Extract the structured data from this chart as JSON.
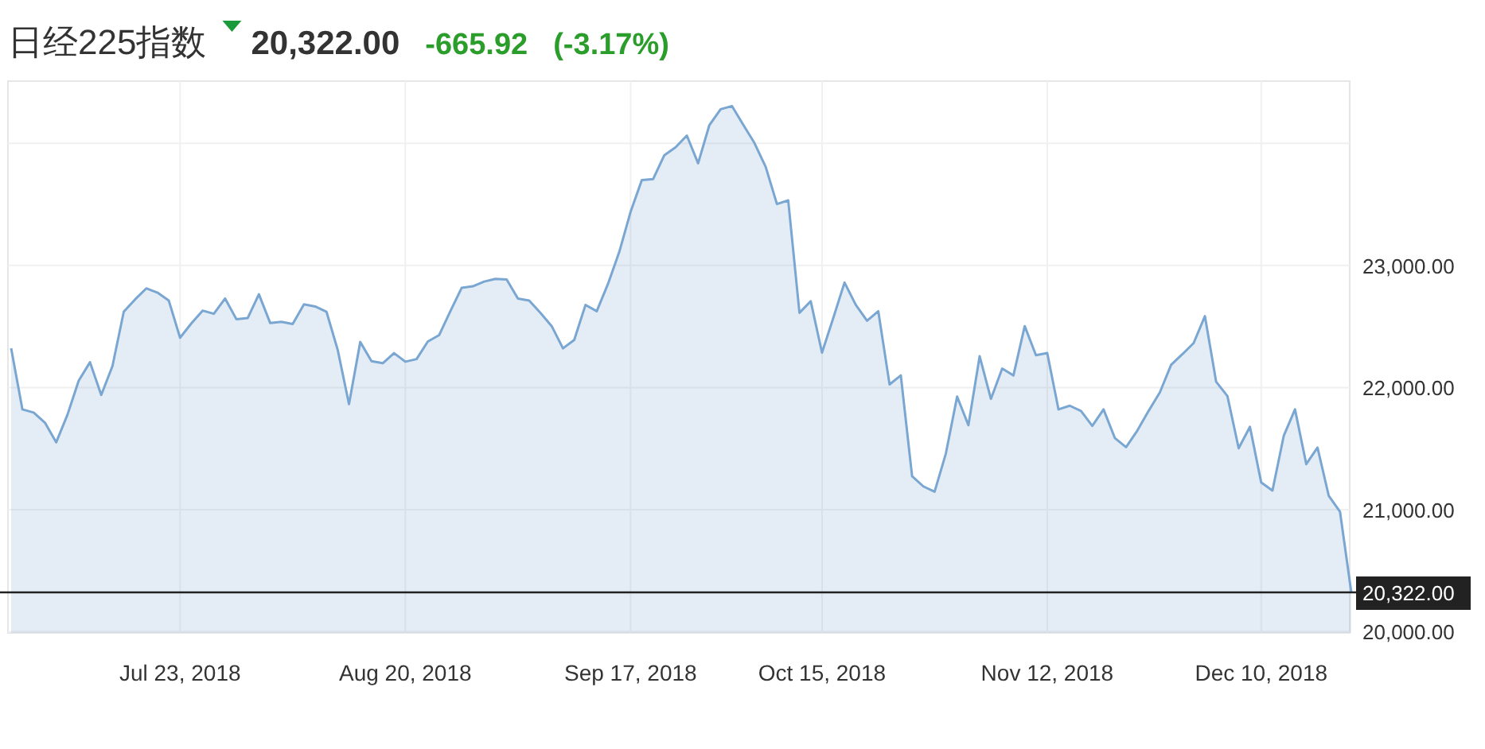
{
  "chart_data": {
    "type": "area",
    "title": "日经225指数",
    "annotations": [
      "20,322.00",
      "-665.92",
      "(-3.17%)"
    ],
    "categories": [
      null,
      null,
      null,
      null,
      null,
      null,
      null,
      null,
      null,
      null,
      null,
      null,
      null,
      null,
      null,
      "Jul 23, 2018",
      null,
      null,
      null,
      null,
      null,
      null,
      null,
      null,
      null,
      null,
      null,
      null,
      null,
      null,
      null,
      null,
      null,
      null,
      null,
      "Aug 20, 2018",
      null,
      null,
      null,
      null,
      null,
      null,
      null,
      null,
      null,
      null,
      null,
      null,
      null,
      null,
      null,
      null,
      null,
      null,
      null,
      "Sep 17, 2018",
      null,
      null,
      null,
      null,
      null,
      null,
      null,
      null,
      null,
      null,
      null,
      null,
      null,
      null,
      null,
      null,
      "Oct 15, 2018",
      null,
      null,
      null,
      null,
      null,
      null,
      null,
      null,
      null,
      null,
      null,
      null,
      null,
      null,
      null,
      null,
      null,
      null,
      null,
      "Nov 12, 2018",
      null,
      null,
      null,
      null,
      null,
      null,
      null,
      null,
      null,
      null,
      null,
      null,
      null,
      null,
      null,
      null,
      null,
      null,
      "Dec 10, 2018",
      null,
      null,
      null,
      null,
      null,
      null,
      null,
      null
    ],
    "series": [
      {
        "color": "#7aa6d2",
        "values": [
          22321,
          21821,
          21795,
          21712,
          21551,
          21777,
          22056,
          22207,
          21939,
          22177,
          22621,
          22721,
          22812,
          22777,
          22712,
          22408,
          22525,
          22630,
          22604,
          22729,
          22560,
          22569,
          22764,
          22529,
          22538,
          22520,
          22681,
          22664,
          22621,
          22308,
          21864,
          22373,
          22216,
          22199,
          22282,
          22212,
          22233,
          22377,
          22429,
          22625,
          22816,
          22829,
          22868,
          22890,
          22885,
          22729,
          22712,
          22612,
          22503,
          22321,
          22390,
          22677,
          22625,
          22850,
          23111,
          23438,
          23699,
          23707,
          23903,
          23968,
          24064,
          23837,
          24150,
          24280,
          24306,
          24154,
          24003,
          23807,
          23503,
          23533,
          22612,
          22707,
          22286,
          22569,
          22860,
          22677,
          22547,
          22625,
          22025,
          22099,
          21274,
          21190,
          21147,
          21460,
          21926,
          21691,
          22256,
          21907,
          22155,
          22099,
          22503,
          22265,
          22282,
          21821,
          21851,
          21808,
          21686,
          21821,
          21587,
          21512,
          21647,
          21808,
          21960,
          22186,
          22273,
          22364,
          22585,
          22047,
          21930,
          21503,
          21678,
          21222,
          21156,
          21604,
          21821,
          21373,
          21508,
          21112,
          20982,
          20322
        ]
      }
    ],
    "ylim": [
      19990,
      24510
    ],
    "yticks": [
      {
        "value": 20000,
        "label": "20,000.00"
      },
      {
        "value": 21000,
        "label": "21,000.00"
      },
      {
        "value": 22000,
        "label": "22,000.00"
      },
      {
        "value": 23000,
        "label": "23,000.00"
      },
      {
        "value": 24000,
        "label": null
      }
    ],
    "ref_lines": [
      {
        "axis": "y",
        "value": 20322,
        "label": "20,322.00",
        "color": "#222222"
      }
    ],
    "grid": true
  }
}
